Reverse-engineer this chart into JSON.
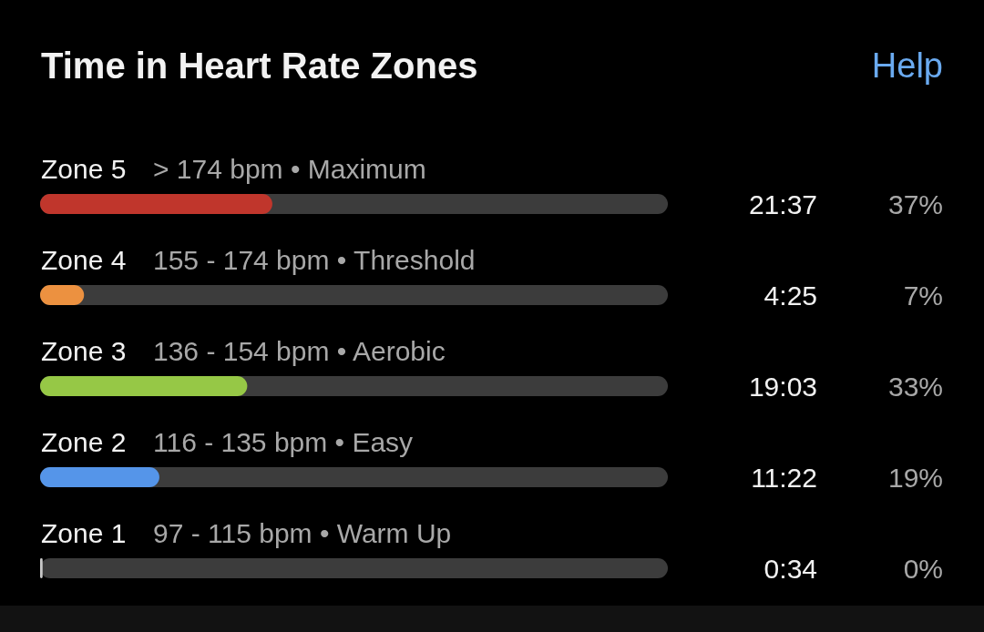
{
  "chart_data": {
    "type": "bar",
    "orientation": "horizontal",
    "title": "Time in Heart Rate Zones",
    "categories": [
      "Zone 5",
      "Zone 4",
      "Zone 3",
      "Zone 2",
      "Zone 1"
    ],
    "values": [
      37,
      7,
      33,
      19,
      0.4
    ],
    "colors": [
      "#c0362c",
      "#ec9140",
      "#96c846",
      "#5595e9",
      "#c8c8c8"
    ],
    "value_labels": [
      "37%",
      "7%",
      "33%",
      "19%",
      "0%"
    ],
    "xlim": [
      0,
      100
    ],
    "tick_labels": "y",
    "annotations": [
      "Help",
      "> 174 bpm • Maximum",
      "21:37",
      "155 - 174 bpm • Threshold",
      "4:25",
      "136 - 154 bpm • Aerobic",
      "19:03",
      "116 - 135 bpm • Easy",
      "11:22",
      "97 - 115 bpm • Warm Up",
      "0:34"
    ]
  }
}
